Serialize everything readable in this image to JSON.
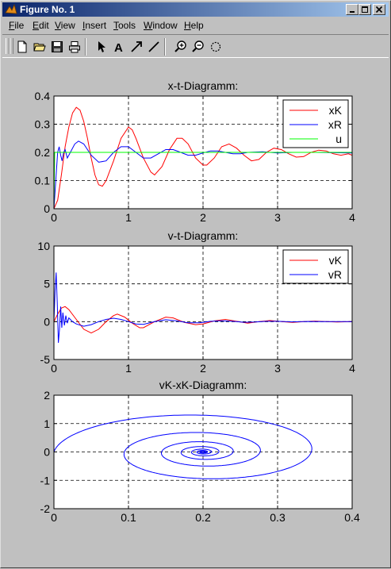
{
  "window": {
    "title": "Figure No. 1"
  },
  "menu": [
    {
      "label": "File",
      "u": "F",
      "rest": "ile"
    },
    {
      "label": "Edit",
      "u": "E",
      "rest": "dit"
    },
    {
      "label": "View",
      "u": "V",
      "rest": "iew"
    },
    {
      "label": "Insert",
      "u": "I",
      "rest": "nsert"
    },
    {
      "label": "Tools",
      "u": "T",
      "rest": "ools"
    },
    {
      "label": "Window",
      "u": "W",
      "rest": "indow"
    },
    {
      "label": "Help",
      "u": "H",
      "rest": "elp"
    }
  ],
  "toolbar": {
    "icons": [
      "new-file-icon",
      "open-folder-icon",
      "save-icon",
      "print-icon",
      "select-arrow-icon",
      "insert-text-icon",
      "insert-arrow-icon",
      "insert-line-icon",
      "zoom-in-icon",
      "zoom-out-icon",
      "rotate-icon"
    ]
  },
  "colors": {
    "xK": "#ff0000",
    "xR": "#0000ff",
    "u": "#00ff00",
    "axes_bg": "#ffffff"
  },
  "chart_data": [
    {
      "type": "line",
      "title": "x-t-Diagramm:",
      "xlim": [
        0,
        4
      ],
      "ylim": [
        0,
        0.4
      ],
      "xticks": [
        "0",
        "1",
        "2",
        "3",
        "4"
      ],
      "yticks": [
        "0",
        "0.1",
        "0.2",
        "0.3",
        "0.4"
      ],
      "grid": true,
      "legend_position": "top-right",
      "series": [
        {
          "name": "xK",
          "color": "#ff0000",
          "points": [
            [
              0,
              0
            ],
            [
              0.05,
              0.03
            ],
            [
              0.1,
              0.12
            ],
            [
              0.15,
              0.22
            ],
            [
              0.2,
              0.29
            ],
            [
              0.25,
              0.34
            ],
            [
              0.3,
              0.36
            ],
            [
              0.35,
              0.35
            ],
            [
              0.4,
              0.31
            ],
            [
              0.45,
              0.25
            ],
            [
              0.5,
              0.18
            ],
            [
              0.55,
              0.12
            ],
            [
              0.6,
              0.085
            ],
            [
              0.65,
              0.08
            ],
            [
              0.7,
              0.1
            ],
            [
              0.8,
              0.17
            ],
            [
              0.9,
              0.25
            ],
            [
              1.0,
              0.29
            ],
            [
              1.05,
              0.28
            ],
            [
              1.1,
              0.25
            ],
            [
              1.2,
              0.18
            ],
            [
              1.3,
              0.13
            ],
            [
              1.35,
              0.12
            ],
            [
              1.45,
              0.15
            ],
            [
              1.55,
              0.21
            ],
            [
              1.65,
              0.25
            ],
            [
              1.72,
              0.25
            ],
            [
              1.8,
              0.23
            ],
            [
              1.9,
              0.18
            ],
            [
              2.0,
              0.155
            ],
            [
              2.05,
              0.155
            ],
            [
              2.15,
              0.18
            ],
            [
              2.25,
              0.22
            ],
            [
              2.35,
              0.23
            ],
            [
              2.45,
              0.215
            ],
            [
              2.55,
              0.19
            ],
            [
              2.65,
              0.17
            ],
            [
              2.75,
              0.175
            ],
            [
              2.85,
              0.2
            ],
            [
              2.95,
              0.215
            ],
            [
              3.05,
              0.21
            ],
            [
              3.15,
              0.195
            ],
            [
              3.25,
              0.183
            ],
            [
              3.35,
              0.185
            ],
            [
              3.45,
              0.2
            ],
            [
              3.55,
              0.208
            ],
            [
              3.65,
              0.205
            ],
            [
              3.75,
              0.195
            ],
            [
              3.85,
              0.19
            ],
            [
              3.95,
              0.195
            ],
            [
              4.0,
              0.19
            ]
          ]
        },
        {
          "name": "xR",
          "color": "#0000ff",
          "points": [
            [
              0,
              0
            ],
            [
              0.03,
              0.12
            ],
            [
              0.05,
              0.2
            ],
            [
              0.07,
              0.22
            ],
            [
              0.09,
              0.19
            ],
            [
              0.11,
              0.17
            ],
            [
              0.13,
              0.2
            ],
            [
              0.15,
              0.21
            ],
            [
              0.18,
              0.18
            ],
            [
              0.22,
              0.2
            ],
            [
              0.28,
              0.23
            ],
            [
              0.33,
              0.24
            ],
            [
              0.4,
              0.23
            ],
            [
              0.5,
              0.19
            ],
            [
              0.6,
              0.165
            ],
            [
              0.7,
              0.17
            ],
            [
              0.8,
              0.2
            ],
            [
              0.9,
              0.22
            ],
            [
              1.0,
              0.22
            ],
            [
              1.1,
              0.2
            ],
            [
              1.2,
              0.18
            ],
            [
              1.3,
              0.18
            ],
            [
              1.4,
              0.195
            ],
            [
              1.5,
              0.21
            ],
            [
              1.6,
              0.21
            ],
            [
              1.7,
              0.2
            ],
            [
              1.8,
              0.19
            ],
            [
              1.9,
              0.19
            ],
            [
              2.0,
              0.198
            ],
            [
              2.1,
              0.205
            ],
            [
              2.2,
              0.205
            ],
            [
              2.3,
              0.2
            ],
            [
              2.4,
              0.195
            ],
            [
              2.5,
              0.195
            ],
            [
              2.6,
              0.2
            ],
            [
              2.8,
              0.202
            ],
            [
              3.0,
              0.198
            ],
            [
              3.2,
              0.2
            ],
            [
              3.5,
              0.2
            ],
            [
              4.0,
              0.198
            ]
          ]
        },
        {
          "name": "u",
          "color": "#00ff00",
          "points": [
            [
              0,
              0
            ],
            [
              0.01,
              0.2
            ],
            [
              4.0,
              0.2
            ]
          ]
        }
      ]
    },
    {
      "type": "line",
      "title": "v-t-Diagramm:",
      "xlim": [
        0,
        4
      ],
      "ylim": [
        -5,
        10
      ],
      "xticks": [
        "0",
        "1",
        "2",
        "3",
        "4"
      ],
      "yticks": [
        "-5",
        "0",
        "5",
        "10"
      ],
      "grid": true,
      "legend_position": "top-right",
      "series": [
        {
          "name": "vK",
          "color": "#ff0000",
          "points": [
            [
              0,
              0
            ],
            [
              0.05,
              1.0
            ],
            [
              0.1,
              1.8
            ],
            [
              0.15,
              2.0
            ],
            [
              0.2,
              1.6
            ],
            [
              0.3,
              0.3
            ],
            [
              0.4,
              -1.0
            ],
            [
              0.5,
              -1.5
            ],
            [
              0.6,
              -1.0
            ],
            [
              0.7,
              0.0
            ],
            [
              0.8,
              0.8
            ],
            [
              0.85,
              1.0
            ],
            [
              0.95,
              0.6
            ],
            [
              1.05,
              -0.2
            ],
            [
              1.15,
              -0.8
            ],
            [
              1.2,
              -0.8
            ],
            [
              1.35,
              0.0
            ],
            [
              1.5,
              0.6
            ],
            [
              1.6,
              0.5
            ],
            [
              1.75,
              -0.1
            ],
            [
              1.9,
              -0.4
            ],
            [
              2.0,
              -0.3
            ],
            [
              2.15,
              0.1
            ],
            [
              2.3,
              0.3
            ],
            [
              2.45,
              0.05
            ],
            [
              2.6,
              -0.2
            ],
            [
              2.75,
              0.0
            ],
            [
              2.9,
              0.15
            ],
            [
              3.05,
              0.0
            ],
            [
              3.2,
              -0.1
            ],
            [
              3.35,
              0.0
            ],
            [
              3.5,
              0.08
            ],
            [
              3.65,
              0.0
            ],
            [
              3.8,
              -0.05
            ],
            [
              4.0,
              0.0
            ]
          ]
        },
        {
          "name": "vR",
          "color": "#0000ff",
          "points": [
            [
              0,
              0
            ],
            [
              0.015,
              4.0
            ],
            [
              0.03,
              6.5
            ],
            [
              0.045,
              2.5
            ],
            [
              0.06,
              -2.8
            ],
            [
              0.075,
              -1.0
            ],
            [
              0.09,
              2.0
            ],
            [
              0.105,
              -0.8
            ],
            [
              0.12,
              1.2
            ],
            [
              0.14,
              -0.5
            ],
            [
              0.16,
              0.8
            ],
            [
              0.18,
              -0.2
            ],
            [
              0.2,
              0.5
            ],
            [
              0.25,
              0.0
            ],
            [
              0.3,
              -0.3
            ],
            [
              0.4,
              -0.6
            ],
            [
              0.5,
              -0.4
            ],
            [
              0.6,
              0.0
            ],
            [
              0.7,
              0.3
            ],
            [
              0.8,
              0.45
            ],
            [
              0.9,
              0.3
            ],
            [
              1.0,
              0.0
            ],
            [
              1.1,
              -0.3
            ],
            [
              1.2,
              -0.35
            ],
            [
              1.35,
              0.0
            ],
            [
              1.5,
              0.25
            ],
            [
              1.65,
              0.1
            ],
            [
              1.8,
              -0.15
            ],
            [
              1.95,
              -0.15
            ],
            [
              2.1,
              0.05
            ],
            [
              2.25,
              0.12
            ],
            [
              2.4,
              0.05
            ],
            [
              2.55,
              -0.08
            ],
            [
              2.7,
              -0.05
            ],
            [
              2.85,
              0.05
            ],
            [
              3.0,
              0.05
            ],
            [
              3.2,
              -0.03
            ],
            [
              3.4,
              0.02
            ],
            [
              3.7,
              0.0
            ],
            [
              4.0,
              0.0
            ]
          ]
        }
      ]
    },
    {
      "type": "line",
      "title": "vK-xK-Diagramm:",
      "xlim": [
        0,
        0.4
      ],
      "ylim": [
        -2,
        2
      ],
      "xticks": [
        "0",
        "0.1",
        "0.2",
        "0.3",
        "0.4"
      ],
      "yticks": [
        "-2",
        "-1",
        "0",
        "1",
        "2"
      ],
      "grid": true,
      "series": [
        {
          "name": "",
          "color": "#0000ff",
          "spiral": {
            "center": [
              0.2,
              0.0
            ],
            "start": [
              0.0,
              0.0
            ]
          }
        }
      ]
    }
  ]
}
